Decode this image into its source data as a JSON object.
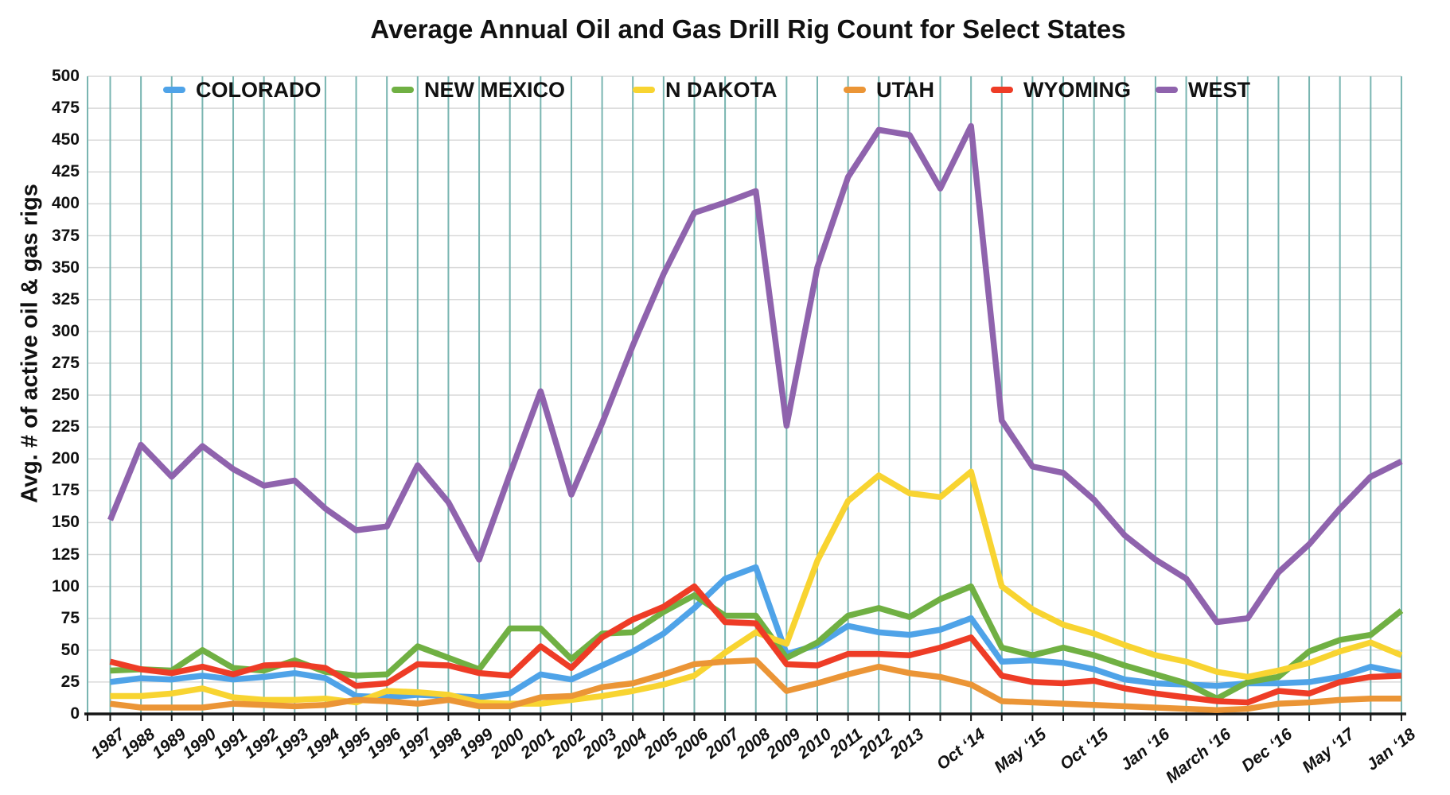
{
  "chart_data": {
    "type": "line",
    "title": "Average Annual Oil and Gas Drill Rig Count for Select States",
    "ylabel": "Avg. # of active oil & gas rigs",
    "xlabel": "",
    "ylim": [
      0,
      500
    ],
    "ytick_step": 25,
    "yticks": [
      0,
      25,
      50,
      75,
      100,
      125,
      150,
      175,
      200,
      225,
      250,
      275,
      300,
      325,
      350,
      375,
      400,
      425,
      450,
      475,
      500
    ],
    "grid": {
      "vertical": true,
      "horizontal": true
    },
    "legend_position": "top",
    "categories": [
      "1987",
      "1988",
      "1989",
      "1990",
      "1991",
      "1992",
      "1993",
      "1994",
      "1995",
      "1996",
      "1997",
      "1998",
      "1999",
      "2000",
      "2001",
      "2002",
      "2003",
      "2004",
      "2005",
      "2006",
      "2007",
      "2008",
      "2009",
      "2010",
      "2011",
      "2012",
      "2013",
      "",
      "Oct ‘14",
      "",
      "May ‘15",
      "",
      "Oct ‘15",
      "",
      "Jan ‘16",
      "",
      "March ‘16",
      "",
      "Dec ‘16",
      "",
      "May ‘17",
      "",
      "Jan ‘18"
    ],
    "series": [
      {
        "name": "COLORADO",
        "color": "#4FA3E8",
        "values": [
          25,
          28,
          27,
          30,
          27,
          29,
          32,
          28,
          14,
          13,
          15,
          14,
          13,
          16,
          31,
          27,
          38,
          49,
          63,
          83,
          106,
          115,
          47,
          54,
          69,
          64,
          62,
          66,
          75,
          41,
          42,
          40,
          35,
          27,
          24,
          23,
          22,
          24,
          24,
          25,
          29,
          37,
          32
        ]
      },
      {
        "name": "NEW MEXICO",
        "color": "#70B043",
        "values": [
          34,
          35,
          34,
          50,
          36,
          34,
          42,
          33,
          30,
          31,
          53,
          44,
          35,
          67,
          67,
          43,
          63,
          64,
          80,
          93,
          77,
          77,
          44,
          56,
          77,
          83,
          76,
          90,
          100,
          52,
          46,
          52,
          46,
          38,
          31,
          24,
          12,
          25,
          29,
          49,
          58,
          62,
          81
        ]
      },
      {
        "name": "N DAKOTA",
        "color": "#F8D431",
        "values": [
          14,
          14,
          16,
          20,
          13,
          11,
          11,
          12,
          9,
          18,
          17,
          15,
          9,
          8,
          8,
          11,
          14,
          18,
          23,
          30,
          48,
          64,
          55,
          120,
          167,
          187,
          173,
          170,
          190,
          100,
          82,
          70,
          63,
          54,
          46,
          41,
          33,
          29,
          34,
          40,
          49,
          56,
          46
        ]
      },
      {
        "name": "UTAH",
        "color": "#EB9536",
        "values": [
          8,
          5,
          5,
          5,
          8,
          7,
          6,
          7,
          11,
          10,
          8,
          11,
          6,
          6,
          13,
          14,
          21,
          24,
          31,
          39,
          41,
          42,
          18,
          24,
          31,
          37,
          32,
          29,
          23,
          10,
          9,
          8,
          7,
          6,
          5,
          4,
          3,
          4,
          8,
          9,
          11,
          12,
          12
        ]
      },
      {
        "name": "WYOMING",
        "color": "#EE3C26",
        "values": [
          41,
          35,
          32,
          37,
          31,
          38,
          39,
          36,
          22,
          24,
          39,
          38,
          32,
          30,
          53,
          36,
          60,
          74,
          84,
          100,
          72,
          71,
          39,
          38,
          47,
          47,
          46,
          52,
          60,
          30,
          25,
          24,
          26,
          20,
          16,
          13,
          10,
          9,
          18,
          16,
          25,
          29,
          30
        ]
      },
      {
        "name": "WEST",
        "color": "#8F63AD",
        "values": [
          152,
          211,
          186,
          210,
          192,
          179,
          183,
          161,
          144,
          147,
          195,
          166,
          121,
          188,
          253,
          172,
          228,
          289,
          345,
          393,
          401,
          410,
          226,
          350,
          421,
          458,
          454,
          412,
          461,
          230,
          194,
          189,
          168,
          140,
          121,
          106,
          72,
          75,
          111,
          133,
          161,
          186,
          198
        ]
      }
    ]
  },
  "colors": {
    "vertical_grid": "#79B5B1",
    "horizontal_grid": "#D9D9D9",
    "axis": "#161616",
    "text": "#111111"
  }
}
